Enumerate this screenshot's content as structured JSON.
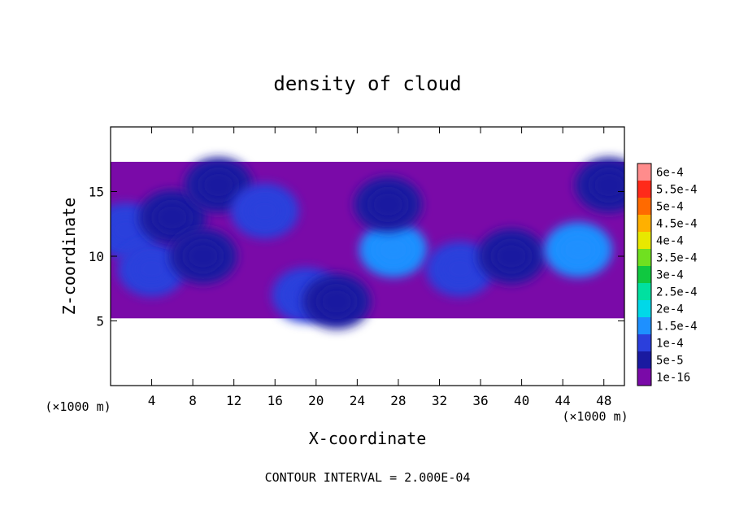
{
  "chart_data": {
    "type": "heatmap",
    "title": "density of cloud",
    "xlabel": "X-coordinate",
    "ylabel": "Z-coordinate",
    "x_unit": "(×1000 m)",
    "y_unit": "(×1000 m)",
    "xlim": [
      0,
      50
    ],
    "ylim": [
      0,
      20
    ],
    "x_ticks": [
      4,
      8,
      12,
      16,
      20,
      24,
      28,
      32,
      36,
      40,
      44,
      48
    ],
    "x_tick_labels": [
      "4",
      "8",
      "12",
      "16",
      "20",
      "24",
      "28",
      "32",
      "36",
      "40",
      "44",
      "48"
    ],
    "y_ticks": [
      5,
      10,
      15
    ],
    "y_tick_labels": [
      "5",
      "10",
      "15"
    ],
    "footer": "CONTOUR INTERVAL = 2.000E-04",
    "colorbar": {
      "levels": [
        1e-16,
        5e-05,
        0.0001,
        0.00015,
        0.0002,
        0.00025,
        0.0003,
        0.00035,
        0.0004,
        0.00045,
        0.0005,
        0.00055,
        0.0006
      ],
      "labels": [
        "1e-16",
        "5e-5",
        "1e-4",
        "1.5e-4",
        "2e-4",
        "2.5e-4",
        "3e-4",
        "3.5e-4",
        "4e-4",
        "4.5e-4",
        "5e-4",
        "5.5e-4",
        "6e-4"
      ],
      "colors": [
        "#7a0aa8",
        "#1a1aa0",
        "#2b3fdc",
        "#1e90ff",
        "#00d8e8",
        "#00e0a0",
        "#10c840",
        "#70e020",
        "#e8e800",
        "#ffb000",
        "#ff6a00",
        "#ff2a1a",
        "#ff8c8c"
      ]
    },
    "cloud_layer": {
      "z_base": 5.2,
      "z_top": 17.3
    },
    "cells": [
      {
        "x": 1.5,
        "z": 12.0,
        "value": 0.0001
      },
      {
        "x": 4.0,
        "z": 9.0,
        "value": 0.00012
      },
      {
        "x": 6.0,
        "z": 13.0,
        "value": 7e-05
      },
      {
        "x": 9.0,
        "z": 10.0,
        "value": 8e-05
      },
      {
        "x": 10.5,
        "z": 15.5,
        "value": 5e-05
      },
      {
        "x": 15.0,
        "z": 13.5,
        "value": 0.00011
      },
      {
        "x": 19.0,
        "z": 7.0,
        "value": 0.00013
      },
      {
        "x": 22.0,
        "z": 6.5,
        "value": 9e-05
      },
      {
        "x": 27.5,
        "z": 10.5,
        "value": 0.00017
      },
      {
        "x": 27.0,
        "z": 14.0,
        "value": 8e-05
      },
      {
        "x": 34.0,
        "z": 9.0,
        "value": 0.0001
      },
      {
        "x": 39.0,
        "z": 10.0,
        "value": 6e-05
      },
      {
        "x": 45.5,
        "z": 10.5,
        "value": 0.00018
      },
      {
        "x": 48.5,
        "z": 15.5,
        "value": 6e-05
      }
    ]
  }
}
